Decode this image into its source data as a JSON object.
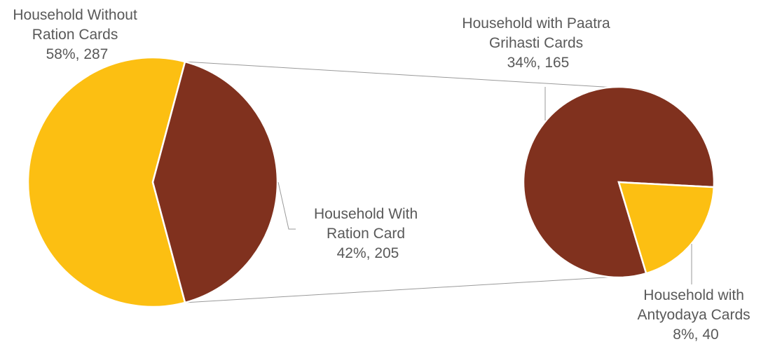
{
  "chart_data": {
    "type": "pie",
    "subtype": "pie-of-pie",
    "colors": {
      "brown": "#80311E",
      "yellow": "#FCBF12",
      "connector": "#9a9a9a"
    },
    "main_pie": {
      "slices": [
        {
          "label_lines": [
            "Household Without",
            "Ration Cards"
          ],
          "value": 287,
          "percent": 58,
          "value_text": "58%, 287",
          "color": "#FCBF12"
        },
        {
          "label_lines": [
            "Household With",
            "Ration Card"
          ],
          "value": 205,
          "percent": 42,
          "value_text": "42%, 205",
          "color": "#80311E"
        }
      ]
    },
    "secondary_pie": {
      "slices": [
        {
          "label_lines": [
            "Household with Paatra",
            "Grihasti Cards"
          ],
          "value": 165,
          "percent": 34,
          "value_text": "34%, 165",
          "color": "#80311E"
        },
        {
          "label_lines": [
            "Household with",
            "Antyodaya Cards"
          ],
          "value": 40,
          "percent": 8,
          "value_text": "8%, 40",
          "color": "#FCBF12"
        }
      ]
    }
  }
}
